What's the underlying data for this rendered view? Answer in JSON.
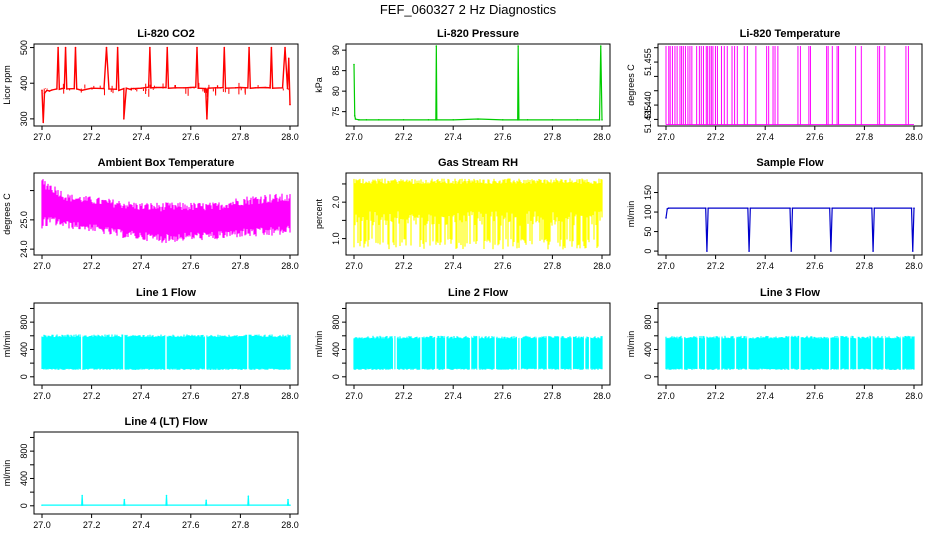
{
  "figure": {
    "title": "FEF_060327  2 Hz Diagnostics",
    "colors": {
      "red": "#ff0000",
      "green": "#00cc00",
      "magenta": "#ff00ff",
      "yellow": "#ffff00",
      "blue": "#0000cc",
      "cyan": "#00ffff",
      "axis": "#000000"
    }
  },
  "chart_data": [
    {
      "type": "line",
      "title": "Li-820 CO2",
      "xlabel": "",
      "ylabel": "Licor ppm",
      "xlim": [
        27.0,
        28.0
      ],
      "ylim": [
        280,
        510
      ],
      "x_ticks": [
        "27.0",
        "27.2",
        "27.4",
        "27.6",
        "27.8",
        "28.0"
      ],
      "y_ticks": [
        {
          "value": 300,
          "label": "300"
        },
        {
          "value": 400,
          "label": "400"
        },
        {
          "value": 500,
          "label": "500"
        }
      ],
      "series": [
        {
          "name": "CO2",
          "color": "#ff0000",
          "x": [
            27.0,
            27.005,
            27.01,
            27.02,
            27.03,
            27.04,
            27.06,
            27.065,
            27.07,
            27.08,
            27.09,
            27.095,
            27.1,
            27.13,
            27.135,
            27.14,
            27.16,
            27.2,
            27.25,
            27.26,
            27.27,
            27.3,
            27.305,
            27.31,
            27.33,
            27.33,
            27.34,
            27.36,
            27.36,
            27.37,
            27.4,
            27.43,
            27.435,
            27.44,
            27.46,
            27.5,
            27.505,
            27.51,
            27.54,
            27.58,
            27.6,
            27.62,
            27.625,
            27.63,
            27.66,
            27.665,
            27.67,
            27.7,
            27.72,
            27.73,
            27.735,
            27.74,
            27.78,
            27.8,
            27.83,
            27.835,
            27.84,
            27.86,
            27.9,
            27.92,
            27.925,
            27.93,
            27.97,
            27.98,
            27.99,
            27.995,
            28.0
          ],
          "values": [
            380,
            290,
            372,
            380,
            378,
            381,
            384,
            500,
            383,
            385,
            386,
            500,
            384,
            385,
            500,
            384,
            380,
            386,
            385,
            500,
            384,
            383,
            500,
            380,
            385,
            300,
            386,
            382,
            385,
            385,
            386,
            389,
            500,
            387,
            388,
            388,
            500,
            386,
            387,
            387,
            388,
            389,
            500,
            386,
            385,
            300,
            386,
            387,
            387,
            388,
            500,
            386,
            387,
            388,
            387,
            500,
            386,
            387,
            388,
            387,
            500,
            386,
            387,
            500,
            385,
            470,
            340
          ]
        }
      ]
    },
    {
      "type": "line",
      "title": "Li-820 Pressure",
      "xlabel": "",
      "ylabel": "kPa",
      "xlim": [
        27.0,
        28.0
      ],
      "ylim": [
        71.5,
        91.5
      ],
      "x_ticks": [
        "27.0",
        "27.2",
        "27.4",
        "27.6",
        "27.8",
        "28.0"
      ],
      "y_ticks": [
        {
          "value": 75,
          "label": "75"
        },
        {
          "value": 80,
          "label": "80"
        },
        {
          "value": 85,
          "label": "85"
        },
        {
          "value": 90,
          "label": "90"
        }
      ],
      "series": [
        {
          "name": "Pressure",
          "color": "#00cc00",
          "x": [
            27.0,
            27.003,
            27.006,
            27.02,
            27.05,
            27.1,
            27.2,
            27.3,
            27.33,
            27.332,
            27.334,
            27.4,
            27.5,
            27.6,
            27.66,
            27.662,
            27.665,
            27.7,
            27.8,
            27.9,
            27.99,
            27.995,
            28.0
          ],
          "values": [
            86.5,
            74.0,
            73.2,
            73.0,
            73.0,
            73.0,
            73.0,
            73.0,
            73.0,
            91.0,
            73.0,
            73.0,
            73.2,
            73.0,
            73.0,
            91.0,
            73.0,
            73.0,
            73.0,
            73.0,
            73.0,
            91.0,
            73.0
          ]
        }
      ]
    },
    {
      "type": "line",
      "title": "Li-820 Temperature",
      "xlabel": "",
      "ylabel": "degrees C",
      "xlim": [
        27.0,
        28.0
      ],
      "ylim": [
        51.4327,
        51.4613
      ],
      "x_ticks": [
        "27.0",
        "27.2",
        "27.4",
        "27.6",
        "27.8",
        "28.0"
      ],
      "y_ticks": [
        {
          "value": 51.435,
          "label": "51.435"
        },
        {
          "value": 51.44,
          "label": "51.440"
        },
        {
          "value": 51.445,
          "label": "51.445"
        },
        {
          "value": 51.45,
          "label": "51.450"
        },
        {
          "value": 51.455,
          "label": "51.455"
        },
        {
          "value": 51.46,
          "label": "51.460"
        }
      ],
      "y_tick_labels_shown": [
        "51.435",
        "51.440",
        "51.455"
      ],
      "series": [
        {
          "name": "Temperature (toggles between two levels)",
          "color": "#ff00ff",
          "levels": [
            51.4332,
            51.4606
          ]
        }
      ]
    },
    {
      "type": "line",
      "title": "Ambient Box Temperature",
      "xlabel": "",
      "ylabel": "degrees C",
      "xlim": [
        27.0,
        28.0
      ],
      "ylim": [
        23.8,
        26.6
      ],
      "x_ticks": [
        "27.0",
        "27.2",
        "27.4",
        "27.6",
        "27.8",
        "28.0"
      ],
      "y_ticks": [
        {
          "value": 24.0,
          "label": "24.0"
        },
        {
          "value": 25.0,
          "label": "25.0"
        },
        {
          "value": 26.0,
          "label": "26.0"
        }
      ],
      "y_tick_labels_shown": [
        "24.0",
        "25.0"
      ],
      "series": [
        {
          "name": "Ambient temp",
          "color": "#ff00ff",
          "x": [
            27.0,
            27.05,
            27.1,
            27.2,
            27.3,
            27.4,
            27.5,
            27.6,
            27.7,
            27.8,
            27.9,
            28.0
          ],
          "lower": [
            24.7,
            24.8,
            24.7,
            24.6,
            24.4,
            24.3,
            24.2,
            24.3,
            24.3,
            24.4,
            24.4,
            24.5
          ],
          "upper": [
            26.5,
            26.2,
            25.9,
            25.8,
            25.7,
            25.6,
            25.6,
            25.6,
            25.6,
            25.8,
            25.9,
            25.9
          ]
        }
      ]
    },
    {
      "type": "line",
      "title": "Gas Stream RH",
      "xlabel": "",
      "ylabel": "percent",
      "xlim": [
        27.0,
        28.0
      ],
      "ylim": [
        0.55,
        2.8
      ],
      "x_ticks": [
        "27.0",
        "27.2",
        "27.4",
        "27.6",
        "27.8",
        "28.0"
      ],
      "y_ticks": [
        {
          "value": 1.0,
          "label": "1.0"
        },
        {
          "value": 1.5,
          "label": "1.5"
        },
        {
          "value": 2.0,
          "label": "2.0"
        },
        {
          "value": 2.5,
          "label": "2.5"
        }
      ],
      "y_tick_labels_shown": [
        "1.0",
        "2.0"
      ],
      "series": [
        {
          "name": "RH",
          "color": "#ffff00",
          "x": [
            27.0,
            28.0
          ],
          "lower": [
            0.7,
            0.7
          ],
          "upper": [
            2.65,
            2.65
          ],
          "dense_band": [
            1.75,
            2.5
          ]
        }
      ]
    },
    {
      "type": "line",
      "title": "Sample Flow",
      "xlabel": "",
      "ylabel": "ml/min",
      "xlim": [
        27.0,
        28.0
      ],
      "ylim": [
        -10,
        200
      ],
      "x_ticks": [
        "27.0",
        "27.2",
        "27.4",
        "27.6",
        "27.8",
        "28.0"
      ],
      "y_ticks": [
        {
          "value": 0,
          "label": "0"
        },
        {
          "value": 50,
          "label": "50"
        },
        {
          "value": 100,
          "label": "100"
        },
        {
          "value": 150,
          "label": "150"
        }
      ],
      "series": [
        {
          "name": "Sample flow",
          "color": "#0000cc",
          "x": [
            27.0,
            27.005,
            27.01,
            27.16,
            27.165,
            27.17,
            27.33,
            27.335,
            27.34,
            27.5,
            27.505,
            27.51,
            27.66,
            27.665,
            27.67,
            27.83,
            27.835,
            27.84,
            27.99,
            27.995,
            28.0
          ],
          "values": [
            85,
            108,
            110,
            110,
            0,
            110,
            110,
            0,
            110,
            110,
            0,
            110,
            110,
            0,
            110,
            110,
            0,
            110,
            110,
            0,
            110
          ]
        }
      ]
    },
    {
      "type": "line",
      "title": "Line 1 Flow",
      "xlabel": "",
      "ylabel": "ml/min",
      "xlim": [
        27.0,
        28.0
      ],
      "ylim": [
        -120,
        1080
      ],
      "x_ticks": [
        "27.0",
        "27.2",
        "27.4",
        "27.6",
        "27.8",
        "28.0"
      ],
      "y_ticks": [
        {
          "value": 0,
          "label": "0"
        },
        {
          "value": 200,
          "label": "200"
        },
        {
          "value": 400,
          "label": "400"
        },
        {
          "value": 600,
          "label": "600"
        },
        {
          "value": 800,
          "label": "800"
        },
        {
          "value": 1000,
          "label": "1000"
        }
      ],
      "y_tick_labels_shown": [
        "0",
        "400",
        "800"
      ],
      "series": [
        {
          "name": "Line 1",
          "color": "#00ffff",
          "lower": 100,
          "upper": 620,
          "gaps_x": [
            27.16,
            27.33,
            27.5,
            27.66,
            27.83
          ]
        }
      ]
    },
    {
      "type": "line",
      "title": "Line 2 Flow",
      "xlabel": "",
      "ylabel": "ml/min",
      "xlim": [
        27.0,
        28.0
      ],
      "ylim": [
        -120,
        1080
      ],
      "x_ticks": [
        "27.0",
        "27.2",
        "27.4",
        "27.6",
        "27.8",
        "28.0"
      ],
      "y_ticks": [
        {
          "value": 0,
          "label": "0"
        },
        {
          "value": 200,
          "label": "200"
        },
        {
          "value": 400,
          "label": "400"
        },
        {
          "value": 600,
          "label": "600"
        },
        {
          "value": 800,
          "label": "800"
        },
        {
          "value": 1000,
          "label": "1000"
        }
      ],
      "y_tick_labels_shown": [
        "0",
        "400",
        "800"
      ],
      "series": [
        {
          "name": "Line 2",
          "color": "#00ffff",
          "lower": 100,
          "upper": 600,
          "gaps_x": [
            27.16,
            27.33,
            27.5,
            27.66,
            27.83,
            27.17,
            27.27,
            27.37,
            27.47,
            27.57,
            27.67,
            27.74,
            27.78,
            27.88,
            27.93,
            27.95
          ]
        }
      ]
    },
    {
      "type": "line",
      "title": "Line 3 Flow",
      "xlabel": "",
      "ylabel": "ml/min",
      "xlim": [
        27.0,
        28.0
      ],
      "ylim": [
        -120,
        1080
      ],
      "x_ticks": [
        "27.0",
        "27.2",
        "27.4",
        "27.6",
        "27.8",
        "28.0"
      ],
      "y_ticks": [
        {
          "value": 0,
          "label": "0"
        },
        {
          "value": 200,
          "label": "200"
        },
        {
          "value": 400,
          "label": "400"
        },
        {
          "value": 600,
          "label": "600"
        },
        {
          "value": 800,
          "label": "800"
        },
        {
          "value": 1000,
          "label": "1000"
        }
      ],
      "y_tick_labels_shown": [
        "0",
        "400",
        "800"
      ],
      "series": [
        {
          "name": "Line 3",
          "color": "#00ffff",
          "lower": 100,
          "upper": 600,
          "gaps_x": [
            27.16,
            27.33,
            27.5,
            27.66,
            27.83,
            27.07,
            27.13,
            27.22,
            27.28,
            27.54,
            27.7,
            27.74,
            27.77,
            27.88,
            27.95
          ]
        }
      ]
    },
    {
      "type": "line",
      "title": "Line 4 (LT) Flow",
      "xlabel": "",
      "ylabel": "ml/min",
      "xlim": [
        27.0,
        28.0
      ],
      "ylim": [
        -120,
        1080
      ],
      "x_ticks": [
        "27.0",
        "27.2",
        "27.4",
        "27.6",
        "27.8",
        "28.0"
      ],
      "y_ticks": [
        {
          "value": 0,
          "label": "0"
        },
        {
          "value": 200,
          "label": "200"
        },
        {
          "value": 400,
          "label": "400"
        },
        {
          "value": 600,
          "label": "600"
        },
        {
          "value": 800,
          "label": "800"
        },
        {
          "value": 1000,
          "label": "1000"
        }
      ],
      "y_tick_labels_shown": [
        "0",
        "400",
        "800"
      ],
      "series": [
        {
          "name": "Line 4",
          "color": "#00ffff",
          "x": [
            27.0,
            27.16,
            27.162,
            27.164,
            27.33,
            27.332,
            27.334,
            27.5,
            27.502,
            27.504,
            27.66,
            27.662,
            27.664,
            27.83,
            27.832,
            27.834,
            27.99,
            27.992,
            27.994,
            28.0
          ],
          "values": [
            10,
            10,
            150,
            10,
            10,
            90,
            10,
            10,
            150,
            10,
            10,
            80,
            10,
            10,
            140,
            10,
            10,
            90,
            10,
            10
          ]
        }
      ]
    }
  ]
}
